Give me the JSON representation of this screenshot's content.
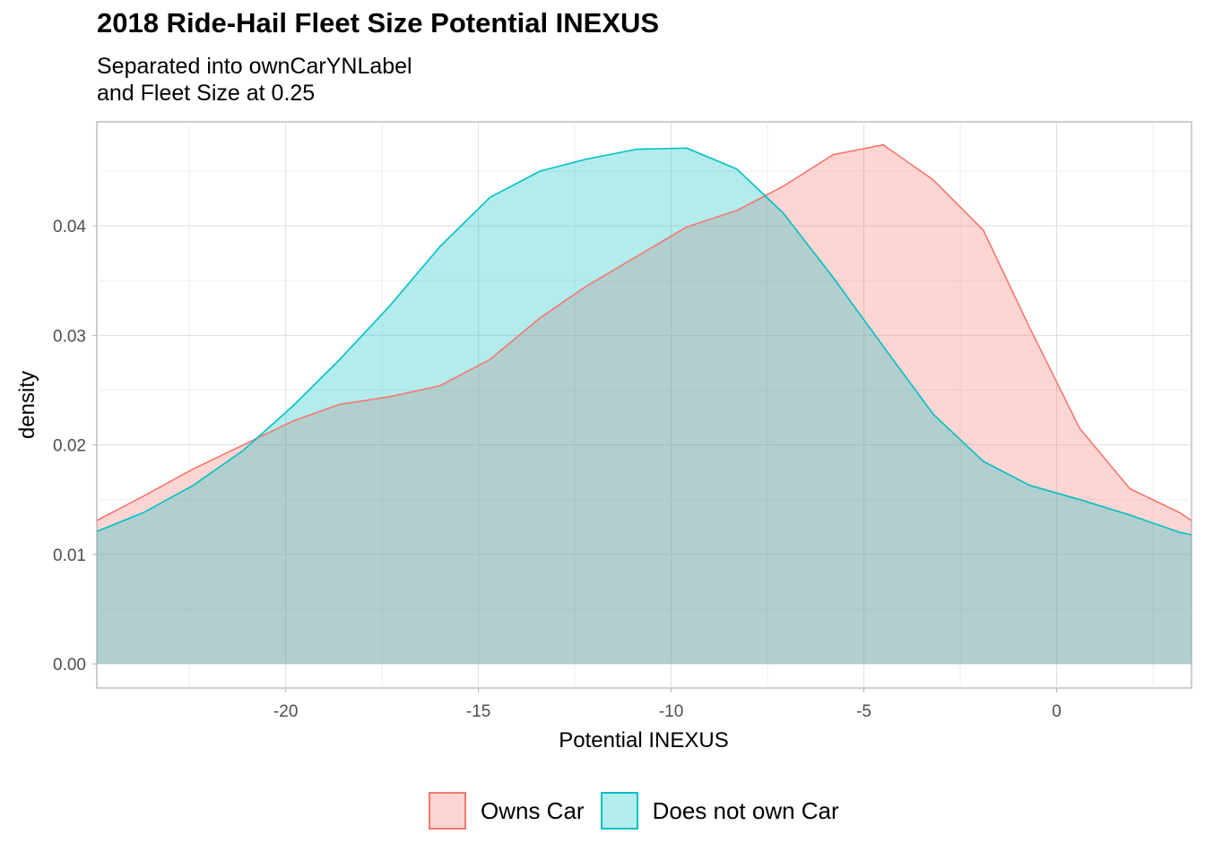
{
  "title": "2018 Ride-Hail Fleet Size Potential INEXUS",
  "subtitle_lines": [
    "Separated into ownCarYNLabel",
    "and Fleet Size at 0.25"
  ],
  "chart_data": {
    "type": "area",
    "title": "2018 Ride-Hail Fleet Size Potential INEXUS",
    "subtitle": "Separated into ownCarYNLabel and Fleet Size at 0.25",
    "xlabel": "Potential INEXUS",
    "ylabel": "density",
    "xlim": [
      -24.9,
      3.5
    ],
    "ylim": [
      -0.0022,
      0.0495
    ],
    "x_ticks": [
      -20,
      -15,
      -10,
      -5,
      0
    ],
    "x_tick_labels": [
      "-20",
      "-15",
      "-10",
      "-5",
      "0"
    ],
    "y_ticks": [
      0,
      0.01,
      0.02,
      0.03,
      0.04
    ],
    "y_tick_labels": [
      "0.00",
      "0.01",
      "0.02",
      "0.03",
      "0.04"
    ],
    "grid": true,
    "legend_position": "bottom",
    "series": [
      {
        "name": "Owns Car",
        "line_color": "#F8766D",
        "fill_color": "#F8766D",
        "fill_opacity": 0.3,
        "x": [
          -24.9,
          -23.7,
          -22.4,
          -21.1,
          -19.8,
          -18.6,
          -17.3,
          -16.0,
          -14.7,
          -13.4,
          -12.2,
          -10.9,
          -9.6,
          -8.3,
          -7.1,
          -5.8,
          -4.5,
          -3.2,
          -1.9,
          -0.7,
          0.6,
          1.9,
          3.2,
          3.5
        ],
        "y": [
          0.0131,
          0.0153,
          0.0178,
          0.02,
          0.0222,
          0.0237,
          0.0244,
          0.0254,
          0.0278,
          0.0316,
          0.0345,
          0.0372,
          0.0399,
          0.0414,
          0.0436,
          0.0465,
          0.0474,
          0.0442,
          0.0396,
          0.0307,
          0.0215,
          0.016,
          0.0138,
          0.0131
        ]
      },
      {
        "name": "Does not own Car",
        "line_color": "#00BFC4",
        "fill_color": "#00BFC4",
        "fill_opacity": 0.3,
        "x": [
          -24.9,
          -23.7,
          -22.4,
          -21.1,
          -19.8,
          -18.6,
          -17.3,
          -16.0,
          -14.7,
          -13.4,
          -12.2,
          -10.9,
          -9.6,
          -8.3,
          -7.1,
          -5.8,
          -4.5,
          -3.2,
          -1.9,
          -0.7,
          0.6,
          1.9,
          3.2,
          3.5
        ],
        "y": [
          0.0121,
          0.0138,
          0.0163,
          0.0195,
          0.0236,
          0.0278,
          0.0327,
          0.0381,
          0.0426,
          0.045,
          0.0461,
          0.047,
          0.0471,
          0.0452,
          0.0412,
          0.0353,
          0.029,
          0.0228,
          0.0185,
          0.0163,
          0.015,
          0.0136,
          0.012,
          0.0118
        ]
      }
    ]
  }
}
